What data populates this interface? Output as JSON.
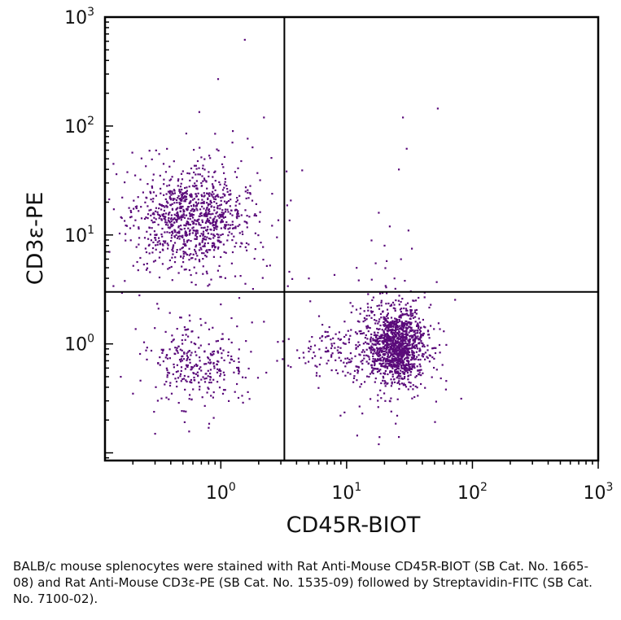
{
  "chart_data": {
    "type": "scatter",
    "title": "",
    "xlabel": "CD45R-BIOT",
    "ylabel": "CD3ε-PE",
    "x_scale": "log",
    "y_scale": "log",
    "xlim": [
      0.12,
      1000
    ],
    "ylim": [
      0.085,
      1000
    ],
    "x_ticks": [
      {
        "base": "10",
        "exp": "0",
        "value": 1
      },
      {
        "base": "10",
        "exp": "1",
        "value": 10
      },
      {
        "base": "10",
        "exp": "2",
        "value": 100
      },
      {
        "base": "10",
        "exp": "3",
        "value": 1000
      }
    ],
    "y_ticks": [
      {
        "base": "10",
        "exp": "0",
        "value": 1
      },
      {
        "base": "10",
        "exp": "1",
        "value": 10
      },
      {
        "base": "10",
        "exp": "2",
        "value": 100
      },
      {
        "base": "10",
        "exp": "3",
        "value": 1000
      }
    ],
    "quadrant_gates": {
      "x": 3.2,
      "y": 3.0
    },
    "point_color": "#5a0a7a",
    "grid": false,
    "populations": [
      {
        "center": [
          0.6,
          14
        ],
        "spread": [
          0.22,
          0.22
        ],
        "count": 1000
      },
      {
        "center": [
          0.62,
          0.65
        ],
        "spread": [
          0.2,
          0.18
        ],
        "count": 300
      },
      {
        "center": [
          25,
          0.95
        ],
        "spread": [
          0.11,
          0.17
        ],
        "count": 1300
      },
      {
        "center": [
          9,
          0.9
        ],
        "spread": [
          0.2,
          0.14
        ],
        "count": 160
      }
    ],
    "outliers": [
      [
        1.55,
        620
      ],
      [
        0.95,
        270
      ],
      [
        53,
        145
      ],
      [
        28,
        120
      ],
      [
        30,
        62
      ],
      [
        26,
        40
      ],
      [
        18,
        16
      ],
      [
        22,
        12
      ],
      [
        31,
        11
      ],
      [
        20,
        8
      ],
      [
        27,
        6
      ],
      [
        33,
        7.5
      ],
      [
        24,
        4
      ],
      [
        29,
        3.8
      ],
      [
        52,
        3.7
      ],
      [
        17,
        5.5
      ],
      [
        12,
        5
      ],
      [
        8,
        4.3
      ],
      [
        3.5,
        4.6
      ],
      [
        5,
        4
      ],
      [
        2.2,
        120
      ],
      [
        0.35,
        45
      ],
      [
        0.14,
        45
      ],
      [
        0.13,
        7
      ],
      [
        0.9,
        85
      ],
      [
        1.8,
        3.2
      ],
      [
        22,
        0.3
      ],
      [
        26,
        0.14
      ],
      [
        18,
        0.12
      ],
      [
        0.16,
        0.5
      ],
      [
        0.2,
        0.35
      ],
      [
        0.3,
        0.15
      ],
      [
        0.8,
        0.17
      ],
      [
        2.2,
        1.6
      ],
      [
        2.8,
        0.7
      ],
      [
        0.14,
        3.4
      ]
    ]
  },
  "caption": "BALB/c mouse splenocytes were stained with Rat Anti-Mouse CD45R-BIOT (SB Cat. No. 1665-08) and Rat Anti-Mouse CD3ε-PE (SB Cat. No. 1535-09) followed by Streptavidin-FITC (SB Cat. No. 7100-02)."
}
